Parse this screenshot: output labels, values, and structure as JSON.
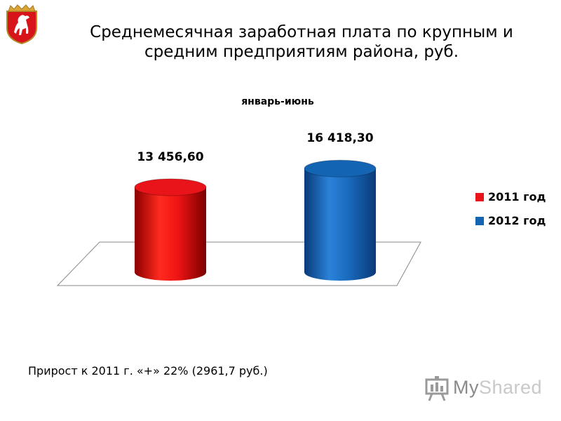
{
  "header": {
    "title_line1": "Среднемесячная заработная плата по крупным и",
    "title_line2": "средним  предприятиям района, руб."
  },
  "chart_data": {
    "type": "bar",
    "title": "январь-июнь",
    "categories": [
      ""
    ],
    "series": [
      {
        "name": "2011 год",
        "values": [
          13456.6
        ],
        "label": "13 456,60",
        "color": "#e8141a"
      },
      {
        "name": "2012 год",
        "values": [
          16418.3
        ],
        "label": "16 418,30",
        "color": "#1464b4"
      }
    ],
    "ylim": [
      0,
      18000
    ],
    "legend_position": "right",
    "grid": false,
    "style": "3d-cylinder"
  },
  "footnote": "Прирост к 2011 г. «+» 22% (2961,7 руб.)",
  "watermark": {
    "prefix": "My",
    "suffix": "Shared"
  },
  "icons": {
    "crest": "coat-of-arms-icon",
    "watermark": "presentation-icon"
  }
}
